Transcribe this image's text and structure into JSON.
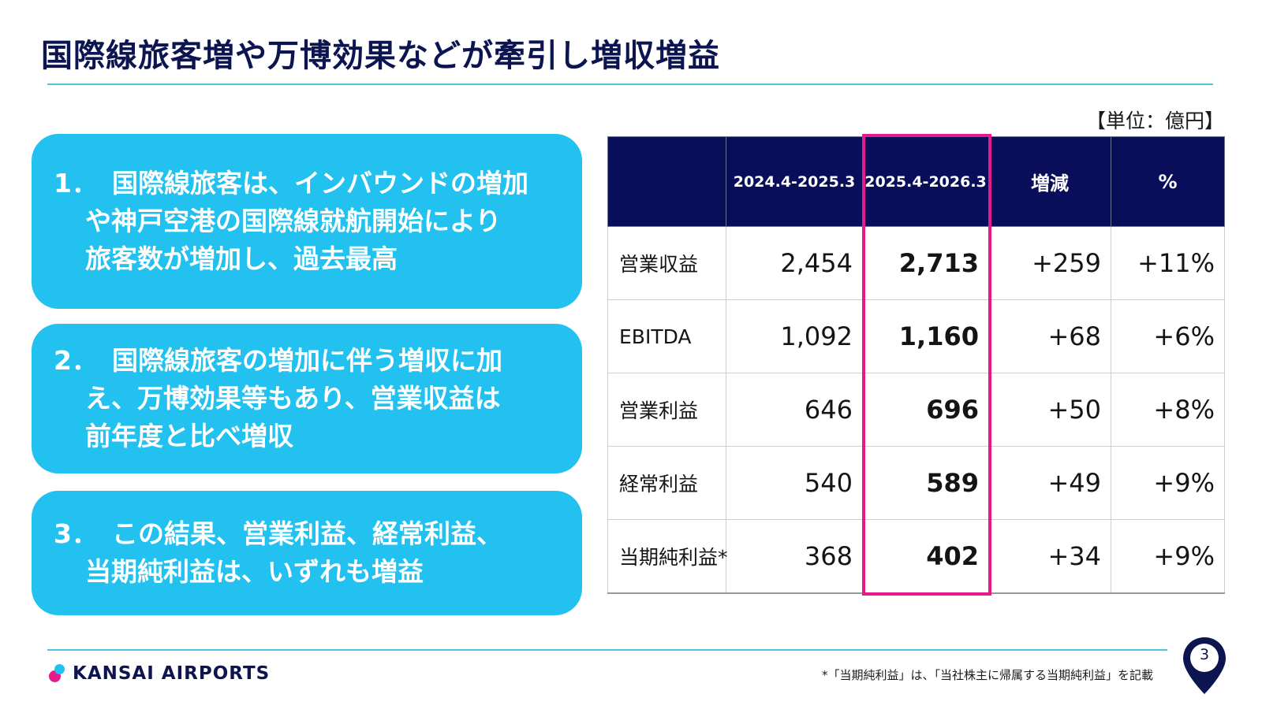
{
  "title": "国際線旅客増や万博効果などが牽引し増収増益",
  "unit": "【単位：億円】",
  "cards": [
    {
      "num": "1．",
      "lines": [
        "国際線旅客は、インバウンドの増加",
        "や神戸空港の国際線就航開始により",
        "旅客数が増加し、過去最高"
      ]
    },
    {
      "num": "2．",
      "lines": [
        "国際線旅客の増加に伴う増収に加",
        "え、万博効果等もあり、営業収益は",
        "前年度と比べ増収"
      ]
    },
    {
      "num": "3．",
      "lines": [
        "この結果、営業利益、経常利益、",
        "当期純利益は、いずれも増益"
      ]
    }
  ],
  "table": {
    "headers": [
      "",
      "2024.4-2025.3",
      "2025.4-2026.3",
      "増減",
      "%"
    ],
    "rows": [
      {
        "label": "営業収益",
        "prev": "2,454",
        "curr": "2,713",
        "diff": "+259",
        "pct": "+11%"
      },
      {
        "label": "EBITDA",
        "prev": "1,092",
        "curr": "1,160",
        "diff": "+68",
        "pct": "+6%"
      },
      {
        "label": "営業利益",
        "prev": "646",
        "curr": "696",
        "diff": "+50",
        "pct": "+8%"
      },
      {
        "label": "経常利益",
        "prev": "540",
        "curr": "589",
        "diff": "+49",
        "pct": "+9%"
      },
      {
        "label": "当期純利益*",
        "prev": "368",
        "curr": "402",
        "diff": "+34",
        "pct": "+9%"
      }
    ]
  },
  "footer": {
    "logo_text": "KANSAI AIRPORTS",
    "footnote": "*「当期純利益」は、「当社株主に帰属する当期純利益」を記載",
    "page": "3"
  },
  "colors": {
    "navy": "#080e5a",
    "card_blue": "#22c1ef",
    "highlight_magenta": "#e8198b",
    "rule_cyan": "#4fc3e0"
  },
  "icons": [
    "kansai-logo-icon",
    "location-pin-icon"
  ]
}
